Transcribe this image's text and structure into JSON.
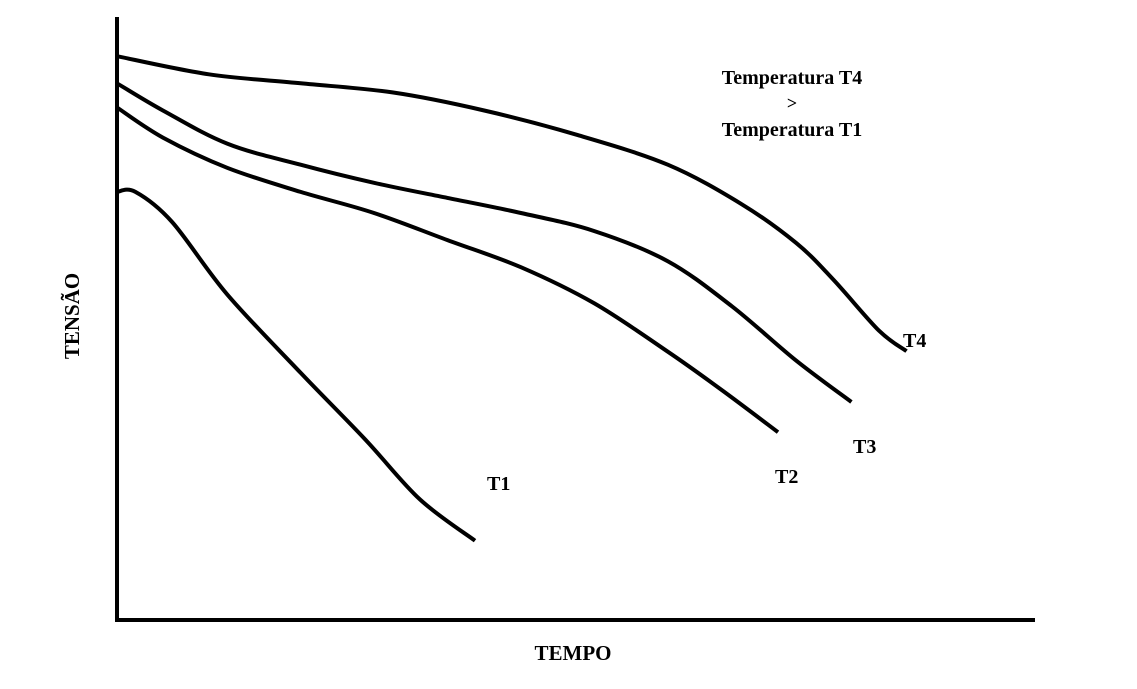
{
  "chart_data": {
    "type": "line",
    "xlabel": "TEMPO",
    "ylabel": "TENSÃO",
    "annotation": {
      "line1": "Temperatura T4",
      "line2": ">",
      "line3": "Temperatura T1"
    },
    "grid": false,
    "legend": "none",
    "series": [
      {
        "name": "T1",
        "x": [
          0,
          0.02,
          0.06,
          0.12,
          0.2,
          0.27,
          0.33,
          0.39
        ],
        "y": [
          0.71,
          0.71,
          0.66,
          0.54,
          0.41,
          0.3,
          0.2,
          0.2
        ]
      },
      {
        "name": "T2",
        "x": [
          0,
          0.05,
          0.12,
          0.2,
          0.28,
          0.36,
          0.44,
          0.52,
          0.6,
          0.66,
          0.72
        ],
        "y": [
          0.85,
          0.8,
          0.75,
          0.71,
          0.675,
          0.63,
          0.585,
          0.525,
          0.445,
          0.38,
          0.38
        ]
      },
      {
        "name": "T3",
        "x": [
          0,
          0.05,
          0.12,
          0.2,
          0.28,
          0.36,
          0.44,
          0.52,
          0.6,
          0.67,
          0.74,
          0.8
        ],
        "y": [
          0.89,
          0.845,
          0.79,
          0.755,
          0.725,
          0.7,
          0.675,
          0.645,
          0.595,
          0.52,
          0.43,
          0.43
        ]
      },
      {
        "name": "T4",
        "x": [
          0,
          0.1,
          0.2,
          0.3,
          0.4,
          0.5,
          0.6,
          0.68,
          0.74,
          0.78,
          0.83,
          0.86
        ],
        "y": [
          0.935,
          0.905,
          0.89,
          0.875,
          0.845,
          0.805,
          0.755,
          0.69,
          0.625,
          0.565,
          0.48,
          0.48
        ]
      }
    ]
  }
}
